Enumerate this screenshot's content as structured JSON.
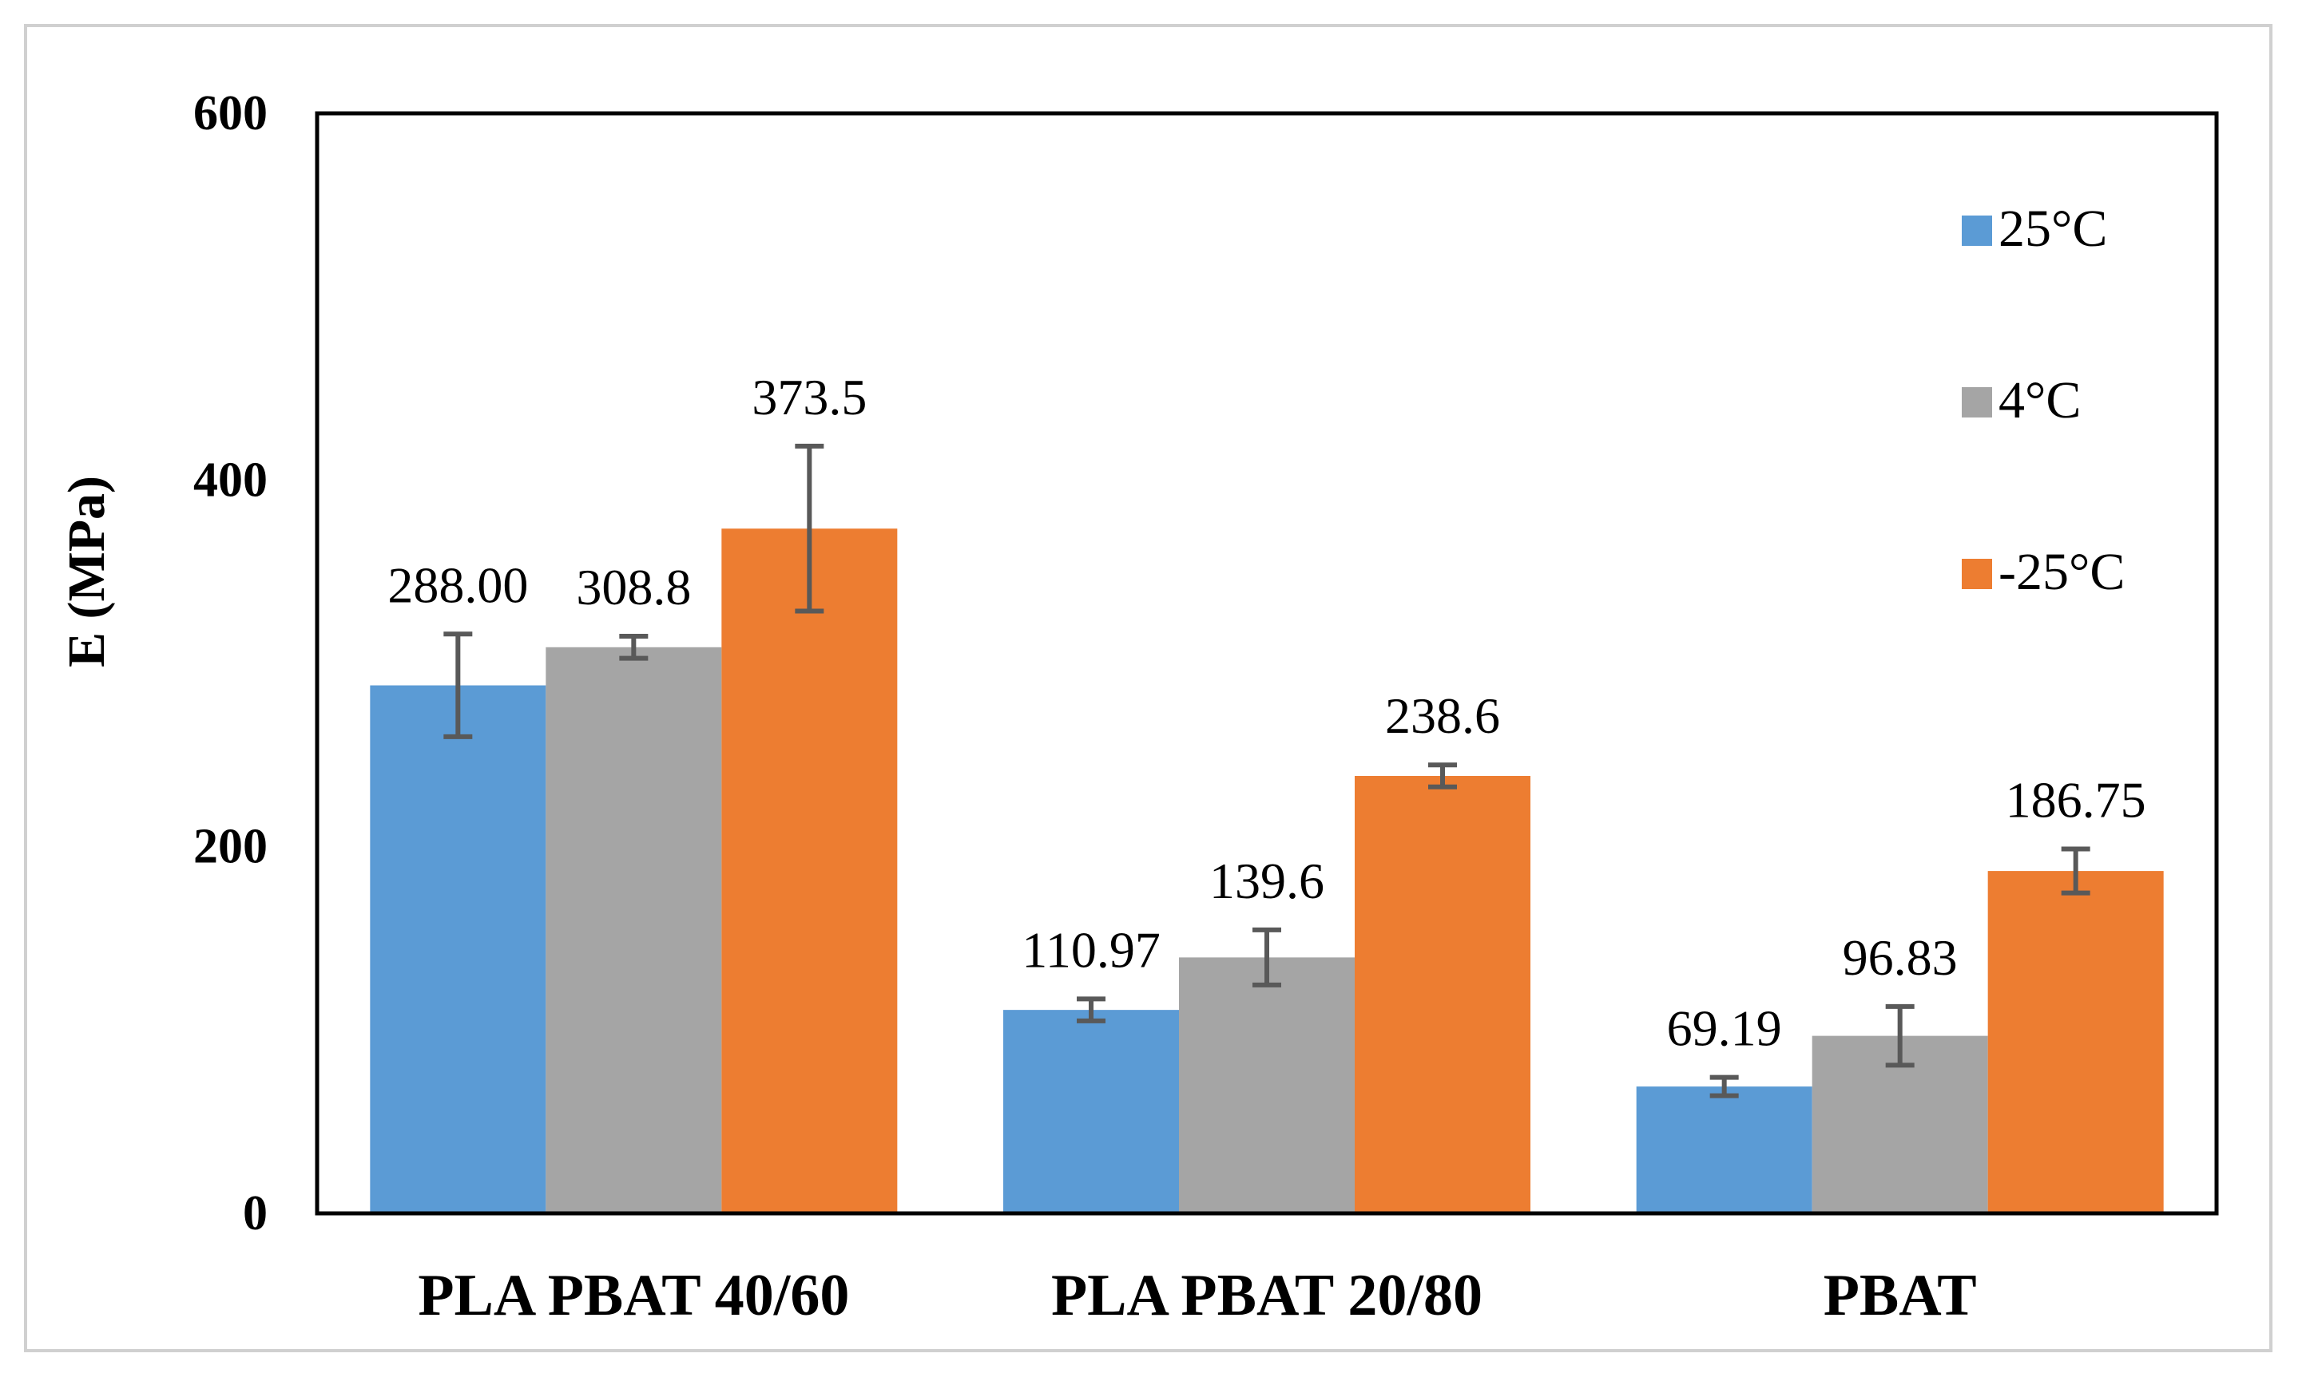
{
  "chart_data": {
    "type": "bar",
    "title": "",
    "xlabel": "",
    "ylabel": "E (MPa)",
    "ylim": [
      0,
      600
    ],
    "yticks": [
      0,
      200,
      400,
      600
    ],
    "grid": false,
    "legend_position": "right",
    "categories": [
      "PLA PBAT 40/60",
      "PLA PBAT 20/80",
      "PBAT"
    ],
    "series": [
      {
        "name": "25°C",
        "color": "#5b9bd5",
        "values": [
          288.0,
          110.97,
          69.19
        ],
        "labels": [
          "288.00",
          "110.97",
          "69.19"
        ],
        "errors": [
          28,
          6,
          5
        ]
      },
      {
        "name": "4°C",
        "color": "#a5a5a5",
        "values": [
          308.8,
          139.6,
          96.83
        ],
        "labels": [
          "308.8",
          "139.6",
          "96.83"
        ],
        "errors": [
          6,
          15,
          16
        ]
      },
      {
        "name": "-25°C",
        "color": "#ed7d31",
        "values": [
          373.5,
          238.6,
          186.75
        ],
        "labels": [
          "373.5",
          "238.6",
          "186.75"
        ],
        "errors": [
          45,
          6,
          12
        ]
      }
    ]
  }
}
